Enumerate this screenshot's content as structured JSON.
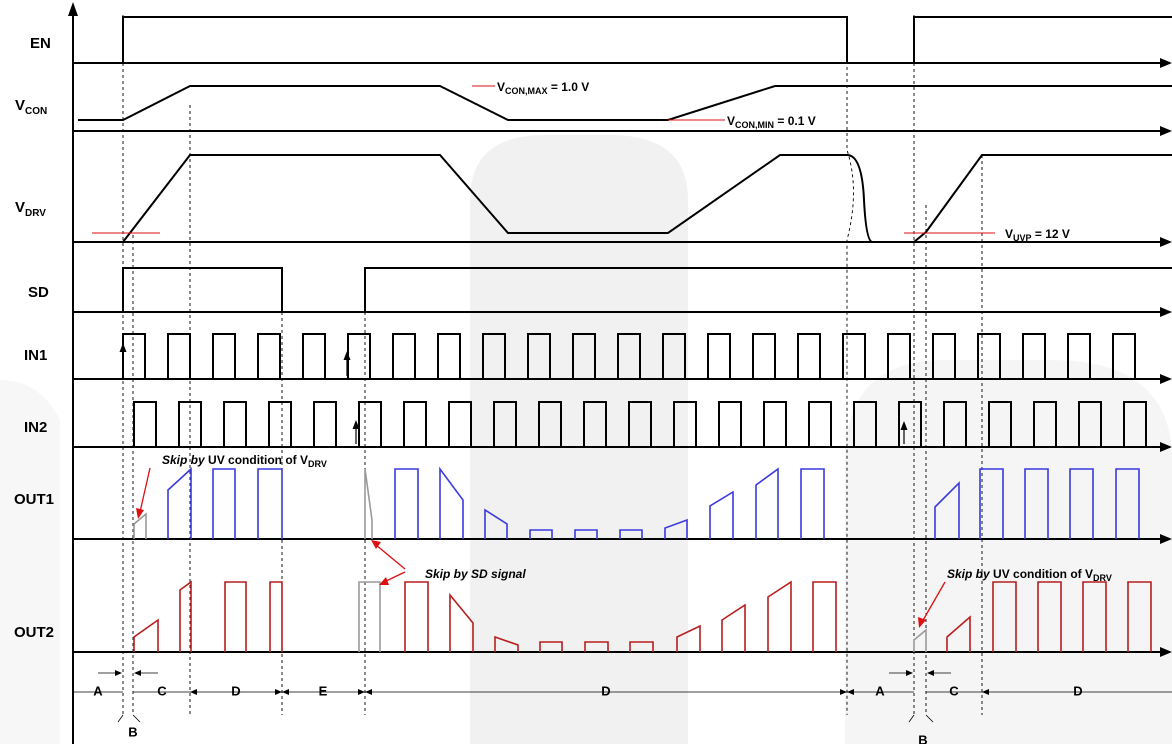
{
  "signals": {
    "en": "EN",
    "vcon": {
      "main": "V",
      "sub": "CON"
    },
    "vdrv": {
      "main": "V",
      "sub": "DRV"
    },
    "sd": "SD",
    "in1": "IN1",
    "in2": "IN2",
    "out1": "OUT1",
    "out2": "OUT2"
  },
  "annotations": {
    "vcon_max": {
      "main": "V",
      "sub": "CON,MAX",
      "rest": " = 1.0 V"
    },
    "vcon_min": {
      "main": "V",
      "sub": "CON,MIN",
      "rest": " = 0.1 V"
    },
    "vuvp": {
      "main": "V",
      "sub": "UVP",
      "rest": " = 12 V"
    },
    "skip_uv_1": {
      "italic": "Skip by",
      "rest": " UV condition of V",
      "sub": "DRV"
    },
    "skip_sd": "Skip by SD signal",
    "skip_uv_2": {
      "italic": "Skip by",
      "rest": " UV condition of V",
      "sub": "DRV"
    }
  },
  "phases": [
    "A",
    "B",
    "C",
    "D",
    "E",
    "D",
    "A",
    "B",
    "C",
    "D"
  ],
  "colors": {
    "out1": "#3a3adf",
    "out2": "#b81e1e",
    "skipped": "#9a9a9a",
    "threshold_marker": "#dd1111"
  }
}
